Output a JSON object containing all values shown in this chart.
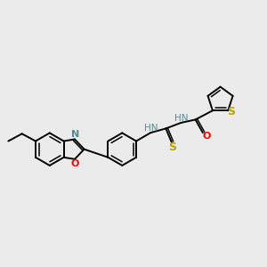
{
  "background_color": "#ebebeb",
  "bond_color": "#000000",
  "N_color": "#4a9090",
  "O_color": "#ff0000",
  "S_color": "#b8a000",
  "figsize": [
    3.0,
    3.0
  ],
  "dpi": 100,
  "xlim": [
    0,
    10
  ],
  "ylim": [
    0,
    10
  ]
}
